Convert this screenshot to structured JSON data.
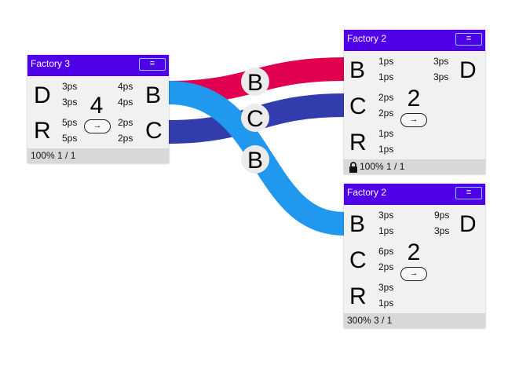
{
  "colors": {
    "header": "#5000e8",
    "link_red": "#e0004f",
    "link_navy": "#323cad",
    "link_blue": "#2098ee",
    "link_label_bg": "#ebebeb"
  },
  "links": [
    {
      "label": "B",
      "color": "#e0004f"
    },
    {
      "label": "C",
      "color": "#323cad"
    },
    {
      "label": "B",
      "color": "#2098ee"
    }
  ],
  "factories": [
    {
      "title": "Factory 3",
      "menu_icon": "≡",
      "in_left": [
        {
          "letter": "D",
          "rates": [
            "3ps",
            "3ps"
          ]
        },
        {
          "letter": "R",
          "rates": [
            "5ps",
            "5ps"
          ]
        }
      ],
      "count": "4",
      "button_icon": "→",
      "out_rates": [
        [
          "4ps",
          "4ps"
        ],
        [
          "2ps",
          "2ps"
        ]
      ],
      "out_right": [
        "B",
        "C"
      ],
      "footer": "100% 1 / 1",
      "locked": false
    },
    {
      "title": "Factory 2",
      "menu_icon": "≡",
      "inputs": [
        {
          "letter": "B",
          "rates": [
            "1ps",
            "1ps"
          ]
        },
        {
          "letter": "C",
          "rates": [
            "2ps",
            "2ps"
          ]
        },
        {
          "letter": "R",
          "rates": [
            "1ps",
            "1ps"
          ]
        }
      ],
      "count": "2",
      "button_icon": "→",
      "out_rates": [
        "3ps",
        "3ps"
      ],
      "out_letter": "D",
      "footer": "100% 1 / 1",
      "locked": true
    },
    {
      "title": "Factory 2",
      "menu_icon": "≡",
      "inputs": [
        {
          "letter": "B",
          "rates": [
            "3ps",
            "1ps"
          ]
        },
        {
          "letter": "C",
          "rates": [
            "6ps",
            "2ps"
          ]
        },
        {
          "letter": "R",
          "rates": [
            "3ps",
            "1ps"
          ]
        }
      ],
      "count": "2",
      "button_icon": "→",
      "out_rates": [
        "9ps",
        "3ps"
      ],
      "out_letter": "D",
      "footer": "300% 3 / 1",
      "locked": false
    }
  ]
}
